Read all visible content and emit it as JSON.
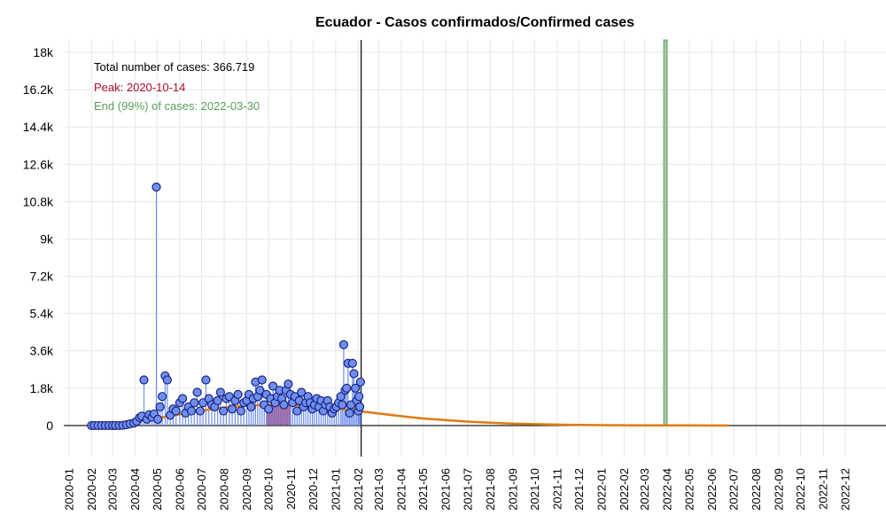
{
  "chart_data": {
    "type": "scatter",
    "title": "Ecuador - Casos confirmados/Confirmed cases",
    "xlabel": "",
    "ylabel": "",
    "x_range": [
      "2019-12-25",
      "2023-01-26"
    ],
    "ylim": [
      -1500,
      18600
    ],
    "y_ticks": [
      0,
      1800,
      3600,
      5400,
      7200,
      9000,
      10800,
      12600,
      14400,
      16200,
      18000
    ],
    "y_tick_labels": [
      "0",
      "1.8k",
      "3.6k",
      "5.4k",
      "7.2k",
      "9k",
      "10.8k",
      "12.6k",
      "14.4k",
      "16.2k",
      "18k"
    ],
    "x_tick_labels": [
      "2020-01",
      "2020-02",
      "2020-03",
      "2020-04",
      "2020-05",
      "2020-06",
      "2020-07",
      "2020-08",
      "2020-09",
      "2020-10",
      "2020-11",
      "2020-12",
      "2021-01",
      "2021-02",
      "2021-03",
      "2021-04",
      "2021-05",
      "2021-06",
      "2021-07",
      "2021-08",
      "2021-09",
      "2021-10",
      "2021-11",
      "2021-12",
      "2022-01",
      "2022-02",
      "2022-03",
      "2022-04",
      "2022-05",
      "2022-06",
      "2022-07",
      "2022-08",
      "2022-09",
      "2022-10",
      "2022-11",
      "2022-12"
    ],
    "grid": true,
    "annotations": {
      "total": "Total number of cases: 366.719",
      "peak": "Peak: 2020-10-14",
      "end": "End (99%) of cases: 2022-03-30"
    },
    "colors": {
      "points_fill": "#6f8fef",
      "points_stroke": "#1a237e",
      "stems": "#6f8fef",
      "fit_curve": "#e07a10",
      "peak_band": "#b0224a",
      "end_band": "#8fc08f",
      "peak_text": "#b0102a",
      "end_text": "#5a9f5a"
    },
    "current_date": "2021-02-05",
    "peak_band": [
      "2020-09-28",
      "2020-10-31"
    ],
    "end_band": [
      "2022-03-27",
      "2022-03-31"
    ],
    "fit_curve": {
      "name": "",
      "x": [
        "2020-02-01",
        "2020-03-01",
        "2020-04-01",
        "2020-05-01",
        "2020-06-01",
        "2020-07-01",
        "2020-08-01",
        "2020-09-01",
        "2020-10-01",
        "2020-10-14",
        "2020-11-01",
        "2020-12-01",
        "2021-01-01",
        "2021-02-01",
        "2021-03-01",
        "2021-04-01",
        "2021-05-01",
        "2021-06-01",
        "2021-07-01",
        "2021-08-01",
        "2021-09-01",
        "2021-10-01",
        "2021-11-01",
        "2021-12-01",
        "2022-01-01",
        "2022-02-01",
        "2022-03-01",
        "2022-04-01",
        "2022-05-01",
        "2022-06-01",
        "2022-06-25"
      ],
      "y": [
        30,
        100,
        200,
        350,
        540,
        720,
        870,
        960,
        1000,
        1005,
        990,
        930,
        830,
        700,
        580,
        450,
        340,
        260,
        190,
        135,
        95,
        65,
        45,
        30,
        20,
        13,
        9,
        6,
        4,
        2,
        1
      ]
    },
    "series": [
      {
        "name": "",
        "x": [
          "2020-02-01",
          "2020-02-05",
          "2020-02-10",
          "2020-02-15",
          "2020-02-20",
          "2020-02-25",
          "2020-03-01",
          "2020-03-05",
          "2020-03-10",
          "2020-03-15",
          "2020-03-20",
          "2020-03-25",
          "2020-03-30",
          "2020-04-03",
          "2020-04-07",
          "2020-04-10",
          "2020-04-13",
          "2020-04-17",
          "2020-04-20",
          "2020-04-24",
          "2020-04-27",
          "2020-04-30",
          "2020-05-02",
          "2020-05-05",
          "2020-05-08",
          "2020-05-12",
          "2020-05-15",
          "2020-05-19",
          "2020-05-23",
          "2020-05-27",
          "2020-06-01",
          "2020-06-05",
          "2020-06-09",
          "2020-06-13",
          "2020-06-17",
          "2020-06-21",
          "2020-06-25",
          "2020-06-29",
          "2020-07-03",
          "2020-07-07",
          "2020-07-11",
          "2020-07-15",
          "2020-07-19",
          "2020-07-23",
          "2020-07-27",
          "2020-07-31",
          "2020-08-04",
          "2020-08-08",
          "2020-08-12",
          "2020-08-16",
          "2020-08-20",
          "2020-08-24",
          "2020-08-28",
          "2020-09-01",
          "2020-09-04",
          "2020-09-07",
          "2020-09-10",
          "2020-09-13",
          "2020-09-16",
          "2020-09-19",
          "2020-09-22",
          "2020-09-25",
          "2020-09-28",
          "2020-10-01",
          "2020-10-04",
          "2020-10-07",
          "2020-10-10",
          "2020-10-13",
          "2020-10-16",
          "2020-10-19",
          "2020-10-22",
          "2020-10-25",
          "2020-10-28",
          "2020-10-31",
          "2020-11-03",
          "2020-11-06",
          "2020-11-09",
          "2020-11-12",
          "2020-11-15",
          "2020-11-18",
          "2020-11-21",
          "2020-11-24",
          "2020-11-27",
          "2020-11-30",
          "2020-12-03",
          "2020-12-06",
          "2020-12-09",
          "2020-12-12",
          "2020-12-15",
          "2020-12-18",
          "2020-12-21",
          "2020-12-24",
          "2020-12-27",
          "2020-12-30",
          "2021-01-02",
          "2021-01-05",
          "2021-01-08",
          "2021-01-10",
          "2021-01-12",
          "2021-01-14",
          "2021-01-16",
          "2021-01-18",
          "2021-01-20",
          "2021-01-22",
          "2021-01-24",
          "2021-01-26",
          "2021-01-28",
          "2021-01-30",
          "2021-02-01",
          "2021-02-02",
          "2021-02-03",
          "2021-02-04"
        ],
        "y": [
          0,
          0,
          0,
          0,
          0,
          0,
          0,
          0,
          0,
          10,
          40,
          80,
          120,
          200,
          380,
          450,
          2200,
          300,
          520,
          400,
          560,
          11500,
          300,
          900,
          1400,
          2400,
          2200,
          500,
          800,
          700,
          1100,
          1300,
          600,
          900,
          700,
          1100,
          1600,
          700,
          1100,
          2200,
          1300,
          1000,
          900,
          1200,
          1600,
          700,
          1300,
          1400,
          800,
          1200,
          1500,
          700,
          1100,
          1200,
          1500,
          900,
          1300,
          2100,
          1400,
          1700,
          2200,
          1000,
          1500,
          800,
          1300,
          1900,
          1100,
          1400,
          1700,
          1300,
          1000,
          1700,
          2000,
          1500,
          1100,
          1400,
          700,
          1200,
          1600,
          900,
          1100,
          1400,
          1100,
          800,
          1000,
          1300,
          900,
          1200,
          700,
          1000,
          1200,
          900,
          600,
          800,
          900,
          1100,
          1400,
          1000,
          3900,
          1700,
          1800,
          3000,
          600,
          1000,
          3000,
          2500,
          1800,
          1200,
          700,
          1400,
          900,
          2100
        ]
      }
    ]
  }
}
